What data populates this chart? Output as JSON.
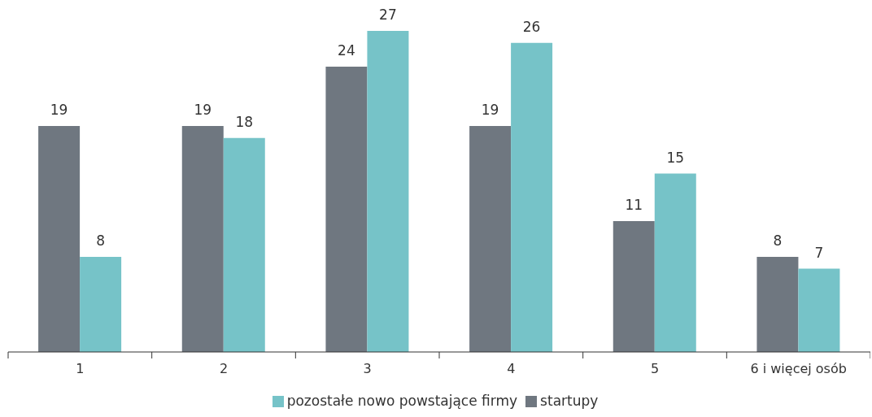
{
  "chart_data": {
    "type": "bar",
    "categories": [
      "1",
      "2",
      "3",
      "4",
      "5",
      "6 i więcej osób"
    ],
    "series": [
      {
        "name": "startupy",
        "color": "#6f7780",
        "values": [
          19,
          19,
          24,
          19,
          11,
          8
        ]
      },
      {
        "name": "pozostałe nowo powstające firmy",
        "color": "#76c3c8",
        "values": [
          8,
          18,
          27,
          26,
          15,
          7
        ]
      }
    ],
    "data_labels": true,
    "legend": "bottom",
    "grid": false
  }
}
